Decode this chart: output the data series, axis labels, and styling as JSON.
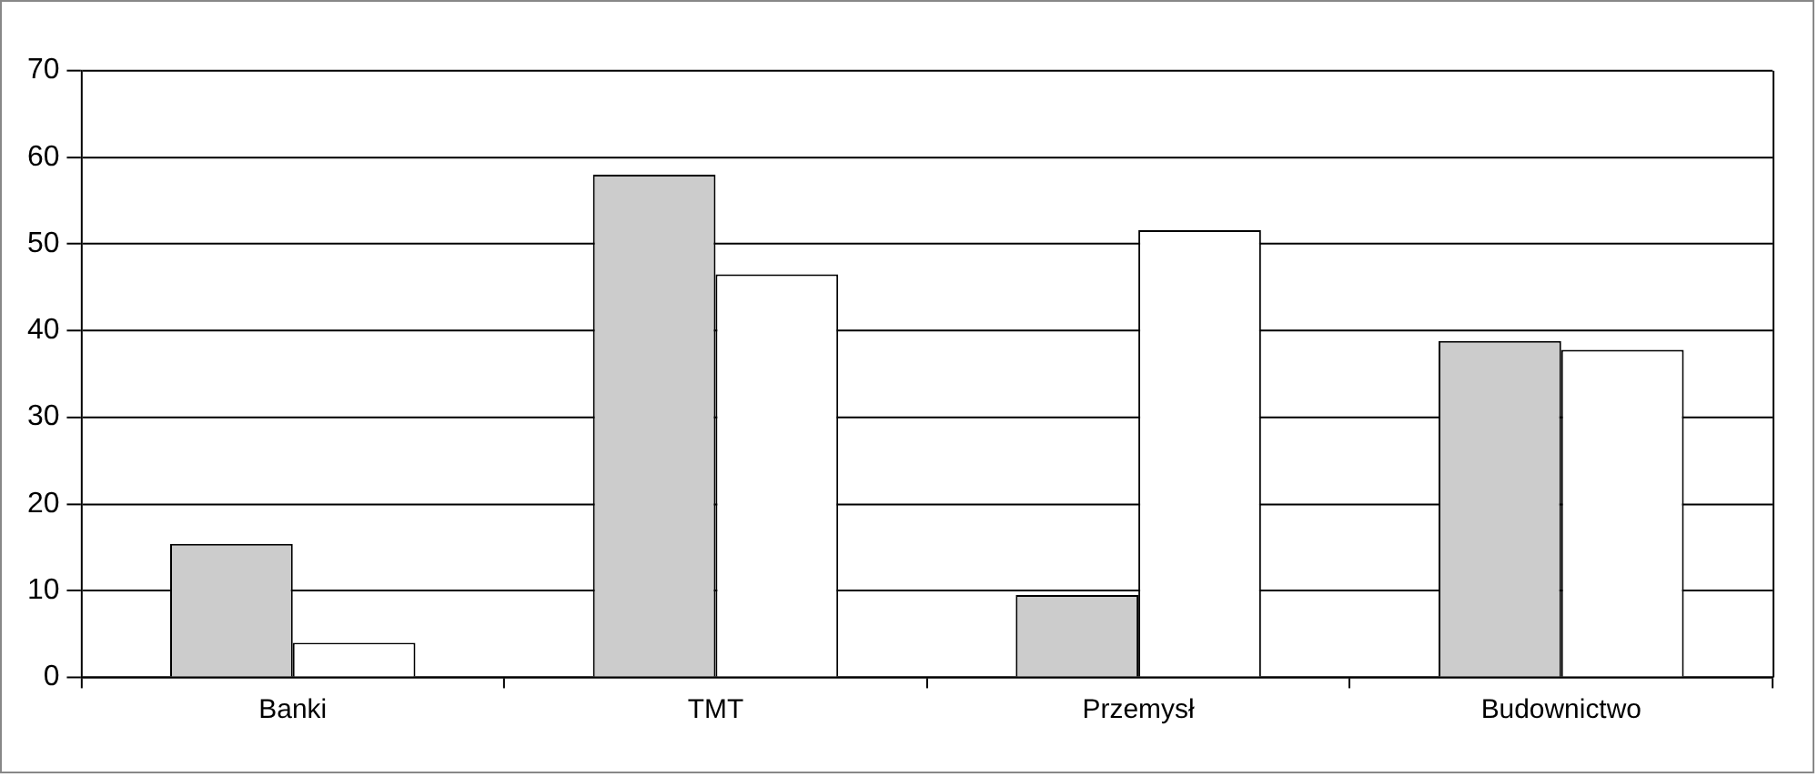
{
  "chart_data": {
    "type": "bar",
    "categories": [
      "Banki",
      "TMT",
      "Przemysł",
      "Budownictwo"
    ],
    "series": [
      {
        "color": "#cccccc",
        "values": [
          15.4,
          58,
          9.5,
          38.8
        ]
      },
      {
        "color": "#ffffff",
        "values": [
          4,
          46.5,
          51.6,
          37.8
        ]
      }
    ],
    "ylim": [
      0,
      70
    ],
    "yticks": [
      0,
      10,
      20,
      30,
      40,
      50,
      60,
      70
    ],
    "grid": "y",
    "legend": false
  }
}
